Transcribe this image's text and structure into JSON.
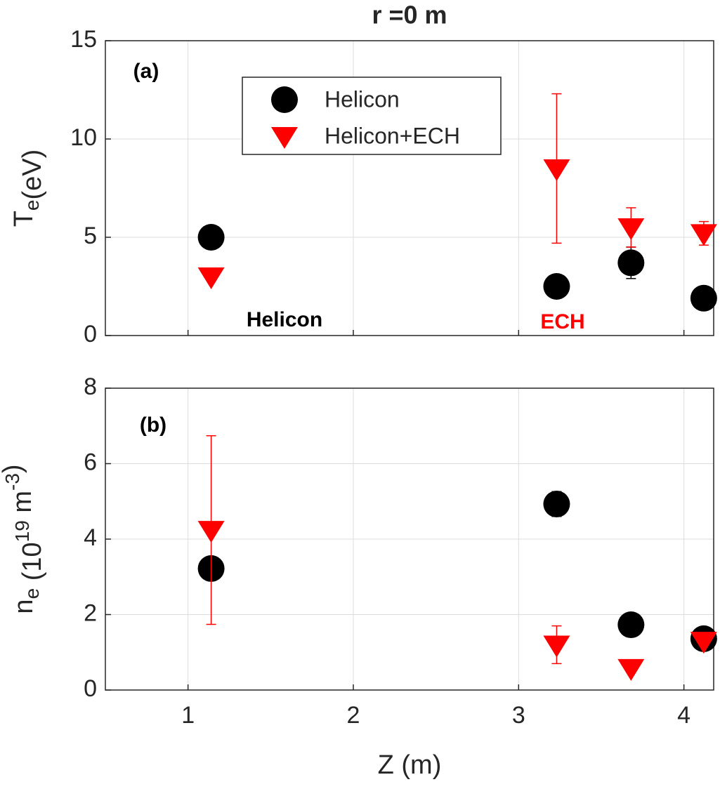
{
  "chart_data": [
    {
      "type": "scatter",
      "title": "r =0 m",
      "ylabel": [
        {
          "text": "T",
          "shift": null
        },
        {
          "text": "e",
          "shift": "sub"
        },
        {
          "text": "(eV)",
          "shift": null
        }
      ],
      "x": [
        1.14,
        3.23,
        3.68,
        4.12
      ],
      "xlim": [
        0.5,
        4.18
      ],
      "xticks": [
        1,
        2,
        3,
        4
      ],
      "show_xticklabels": false,
      "ylim": [
        0,
        15
      ],
      "yticks": [
        0,
        5,
        10,
        15
      ],
      "grid": true,
      "legend": "upper center",
      "annotations": [
        {
          "text": "(a)",
          "color": "#000000"
        },
        {
          "text": "Helicon",
          "color": "#000000"
        },
        {
          "text": "ECH",
          "color": "#ff0000"
        }
      ],
      "series": [
        {
          "name": "Helicon",
          "color": "#000000",
          "marker": "circle",
          "values": [
            5.0,
            2.5,
            3.7,
            1.9
          ],
          "errors": [
            null,
            null,
            0.8,
            null
          ]
        },
        {
          "name": "Helicon+ECH",
          "color": "#ff0000",
          "marker": "triangle-down",
          "values": [
            3.0,
            8.5,
            5.5,
            5.2
          ],
          "errors": [
            0.2,
            3.8,
            1.0,
            0.6
          ]
        }
      ]
    },
    {
      "type": "scatter",
      "xlabel": "Z (m)",
      "ylabel": [
        {
          "text": "n",
          "shift": null
        },
        {
          "text": "e",
          "shift": "sub"
        },
        {
          "text": " (10",
          "shift": null
        },
        {
          "text": "19",
          "shift": "sup"
        },
        {
          "text": " m",
          "shift": null
        },
        {
          "text": "-3",
          "shift": "sup"
        },
        {
          "text": ")",
          "shift": null
        }
      ],
      "x": [
        1.14,
        3.23,
        3.68,
        4.12
      ],
      "xlim": [
        0.5,
        4.18
      ],
      "xticks": [
        1,
        2,
        3,
        4
      ],
      "show_xticklabels": true,
      "ylim": [
        0,
        8
      ],
      "yticks": [
        0,
        2,
        4,
        6,
        8
      ],
      "grid": true,
      "annotations": [
        {
          "text": "(b)",
          "color": "#000000"
        }
      ],
      "series": [
        {
          "name": "Helicon",
          "color": "#000000",
          "marker": "circle",
          "values": [
            3.22,
            4.93,
            1.73,
            1.36
          ],
          "errors": [
            null,
            0.33,
            null,
            null
          ]
        },
        {
          "name": "Helicon+ECH",
          "color": "#ff0000",
          "marker": "triangle-down",
          "values": [
            4.24,
            1.2,
            0.58,
            1.3
          ],
          "errors": [
            2.5,
            0.5,
            null,
            null
          ]
        }
      ]
    }
  ]
}
